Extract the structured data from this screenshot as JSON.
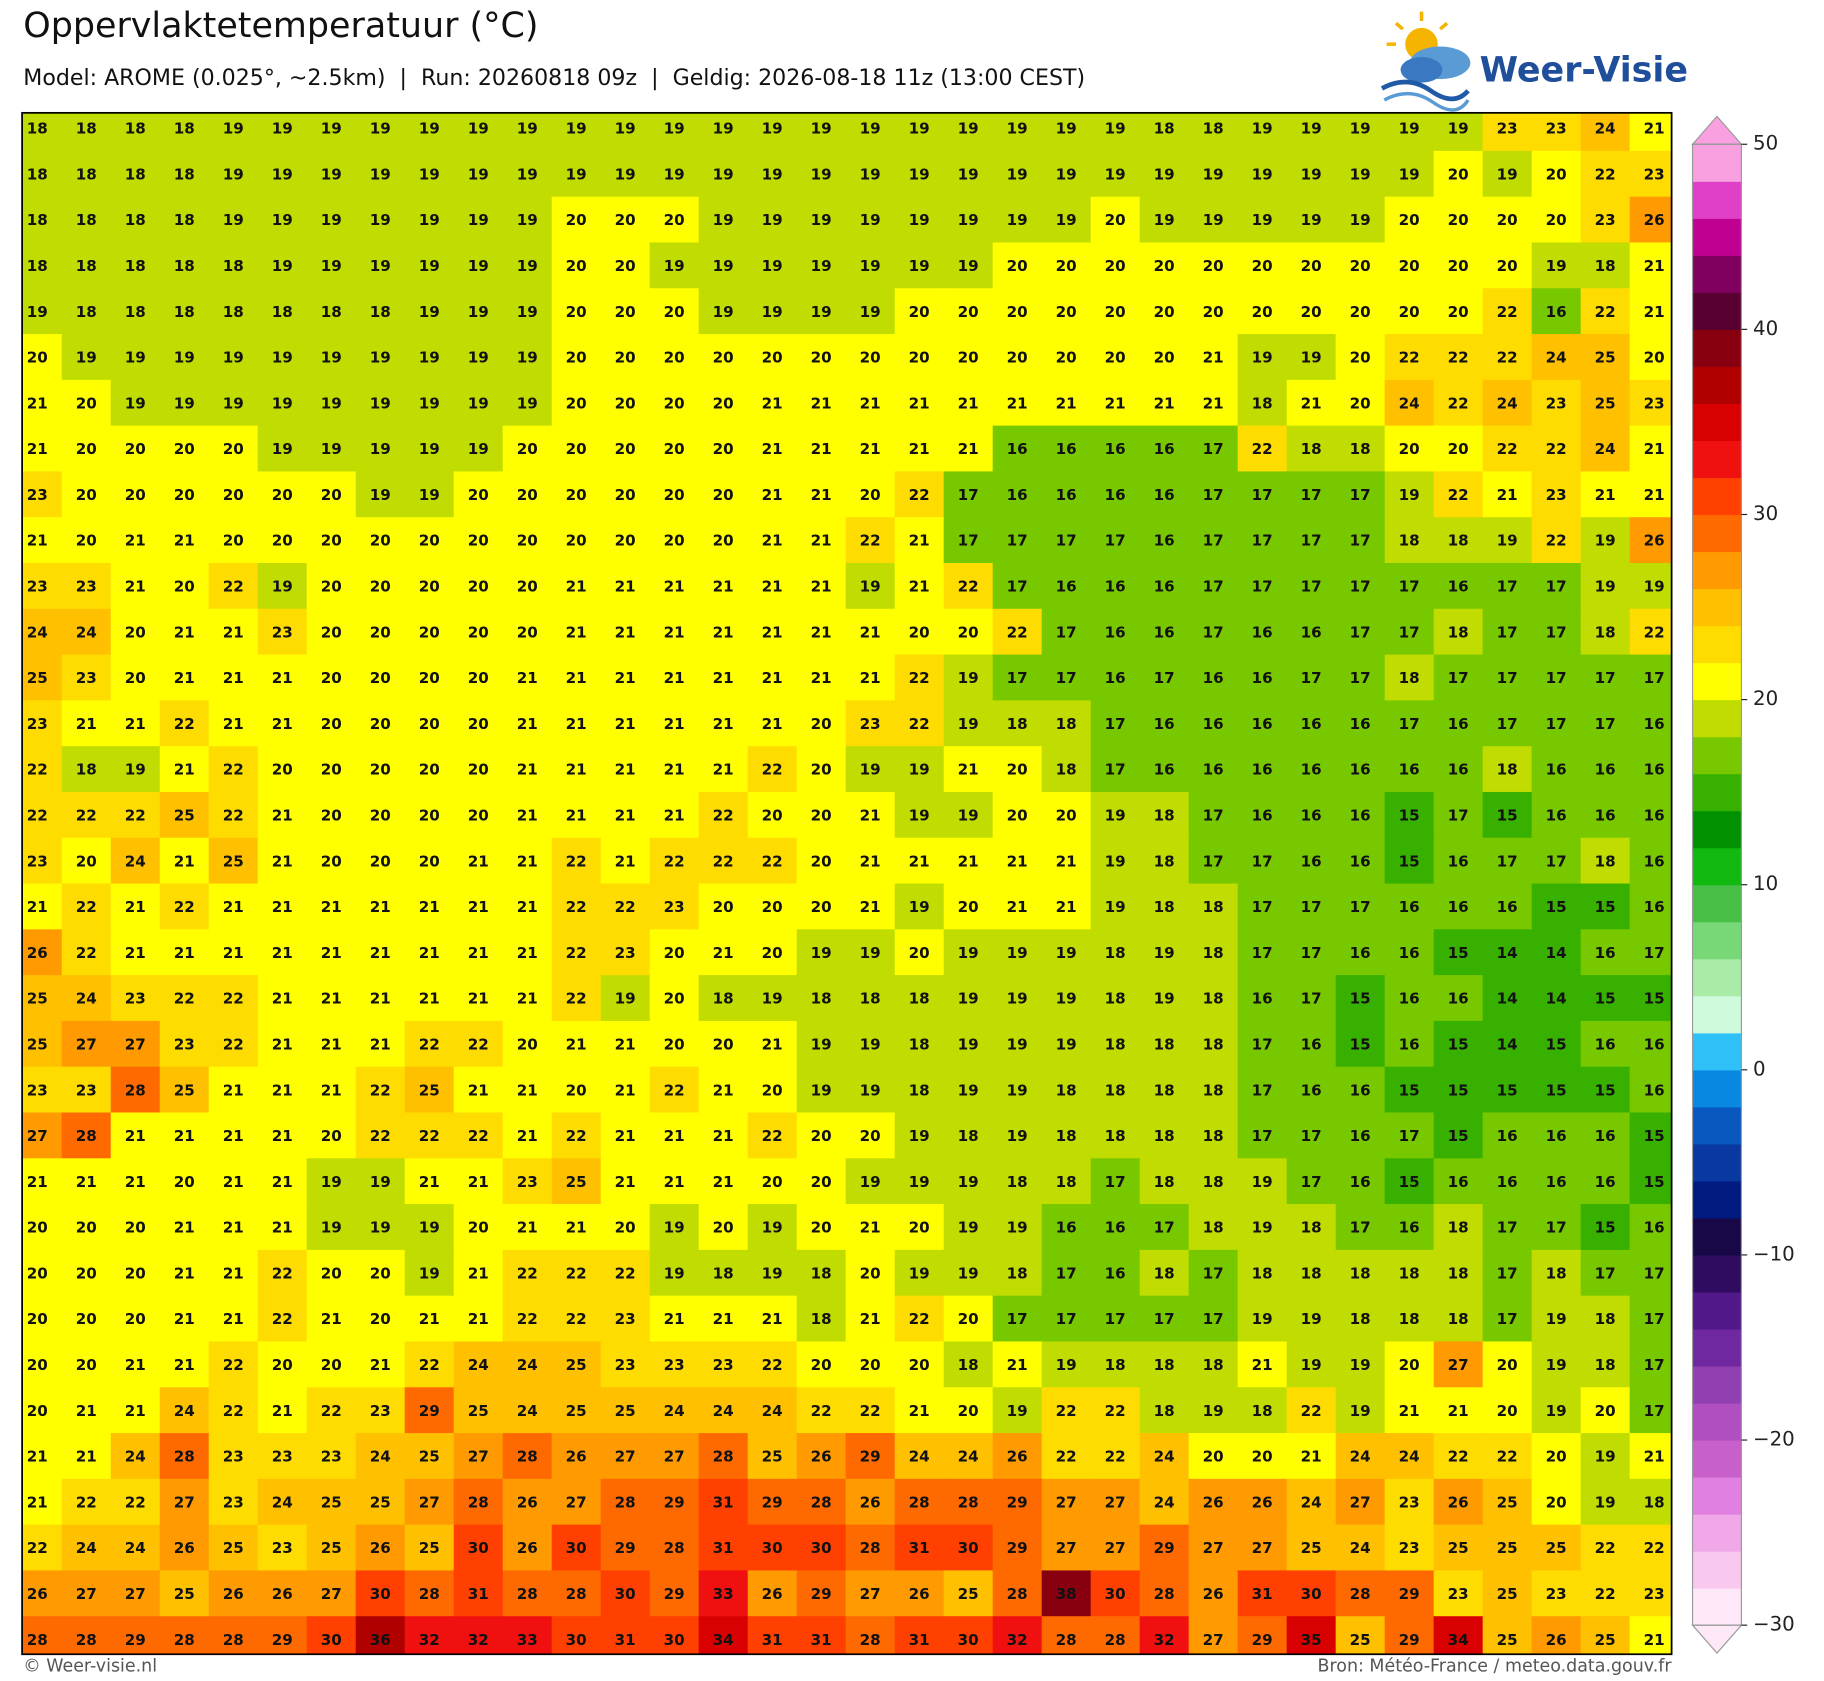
{
  "chart_data": {
    "type": "heatmap",
    "title": "Oppervlaktetemperatuur (°C)",
    "subtitle": "Model: AROME (0.025°, ~2.5km)  |  Run: 20260818 09z  |  Geldig: 2026-08-18 11z (13:00 CEST)",
    "brand": "Weer-Visie",
    "footer_left": "© Weer-visie.nl",
    "footer_right": "Bron: Météo-France / meteo.data.gouv.fr",
    "values": [
      [
        18,
        18,
        18,
        18,
        19,
        19,
        19,
        19,
        19,
        19,
        19,
        19,
        19,
        19,
        19,
        19,
        19,
        19,
        19,
        19,
        19,
        19,
        19,
        18,
        18,
        19,
        19,
        19,
        19,
        19,
        23,
        23,
        24,
        21
      ],
      [
        18,
        18,
        18,
        18,
        19,
        19,
        19,
        19,
        19,
        19,
        19,
        19,
        19,
        19,
        19,
        19,
        19,
        19,
        19,
        19,
        19,
        19,
        19,
        19,
        19,
        19,
        19,
        19,
        19,
        20,
        19,
        20,
        22,
        23
      ],
      [
        18,
        18,
        18,
        18,
        19,
        19,
        19,
        19,
        19,
        19,
        19,
        20,
        20,
        20,
        19,
        19,
        19,
        19,
        19,
        19,
        19,
        19,
        20,
        19,
        19,
        19,
        19,
        19,
        20,
        20,
        20,
        20,
        23,
        26
      ],
      [
        18,
        18,
        18,
        18,
        18,
        19,
        19,
        19,
        19,
        19,
        19,
        20,
        20,
        19,
        19,
        19,
        19,
        19,
        19,
        19,
        20,
        20,
        20,
        20,
        20,
        20,
        20,
        20,
        20,
        20,
        20,
        19,
        18,
        21
      ],
      [
        19,
        18,
        18,
        18,
        18,
        18,
        18,
        18,
        19,
        19,
        19,
        20,
        20,
        20,
        19,
        19,
        19,
        19,
        20,
        20,
        20,
        20,
        20,
        20,
        20,
        20,
        20,
        20,
        20,
        20,
        22,
        16,
        22,
        21
      ],
      [
        20,
        19,
        19,
        19,
        19,
        19,
        19,
        19,
        19,
        19,
        19,
        20,
        20,
        20,
        20,
        20,
        20,
        20,
        20,
        20,
        20,
        20,
        20,
        20,
        21,
        19,
        19,
        20,
        22,
        22,
        22,
        24,
        25,
        20
      ],
      [
        21,
        20,
        19,
        19,
        19,
        19,
        19,
        19,
        19,
        19,
        19,
        20,
        20,
        20,
        20,
        21,
        21,
        21,
        21,
        21,
        21,
        21,
        21,
        21,
        21,
        18,
        21,
        20,
        24,
        22,
        24,
        23,
        25,
        23
      ],
      [
        21,
        20,
        20,
        20,
        20,
        19,
        19,
        19,
        19,
        19,
        20,
        20,
        20,
        20,
        20,
        21,
        21,
        21,
        21,
        21,
        16,
        16,
        16,
        16,
        17,
        22,
        18,
        18,
        20,
        20,
        22,
        22,
        24,
        21
      ],
      [
        23,
        20,
        20,
        20,
        20,
        20,
        20,
        19,
        19,
        20,
        20,
        20,
        20,
        20,
        20,
        21,
        21,
        20,
        22,
        17,
        16,
        16,
        16,
        16,
        17,
        17,
        17,
        17,
        19,
        22,
        21,
        23,
        21,
        21
      ],
      [
        21,
        20,
        21,
        21,
        20,
        20,
        20,
        20,
        20,
        20,
        20,
        20,
        20,
        20,
        20,
        21,
        21,
        22,
        21,
        17,
        17,
        17,
        17,
        16,
        17,
        17,
        17,
        17,
        18,
        18,
        19,
        22,
        19,
        26
      ],
      [
        23,
        23,
        21,
        20,
        22,
        19,
        20,
        20,
        20,
        20,
        20,
        21,
        21,
        21,
        21,
        21,
        21,
        19,
        21,
        22,
        17,
        16,
        16,
        16,
        17,
        17,
        17,
        17,
        17,
        16,
        17,
        17,
        19,
        19
      ],
      [
        24,
        24,
        20,
        21,
        21,
        23,
        20,
        20,
        20,
        20,
        20,
        21,
        21,
        21,
        21,
        21,
        21,
        21,
        20,
        20,
        22,
        17,
        16,
        16,
        17,
        16,
        16,
        17,
        17,
        18,
        17,
        17,
        18,
        22
      ],
      [
        25,
        23,
        20,
        21,
        21,
        21,
        20,
        20,
        20,
        20,
        21,
        21,
        21,
        21,
        21,
        21,
        21,
        21,
        22,
        19,
        17,
        17,
        16,
        17,
        16,
        16,
        17,
        17,
        18,
        17,
        17,
        17,
        17,
        17
      ],
      [
        23,
        21,
        21,
        22,
        21,
        21,
        20,
        20,
        20,
        20,
        21,
        21,
        21,
        21,
        21,
        21,
        20,
        23,
        22,
        19,
        18,
        18,
        17,
        16,
        16,
        16,
        16,
        16,
        17,
        16,
        17,
        17,
        17,
        16
      ],
      [
        22,
        18,
        19,
        21,
        22,
        20,
        20,
        20,
        20,
        20,
        21,
        21,
        21,
        21,
        21,
        22,
        20,
        19,
        19,
        21,
        20,
        18,
        17,
        16,
        16,
        16,
        16,
        16,
        16,
        16,
        18,
        16,
        16,
        16
      ],
      [
        22,
        22,
        22,
        25,
        22,
        21,
        20,
        20,
        20,
        20,
        21,
        21,
        21,
        21,
        22,
        20,
        20,
        21,
        19,
        19,
        20,
        20,
        19,
        18,
        17,
        16,
        16,
        16,
        15,
        17,
        15,
        16,
        16,
        16
      ],
      [
        23,
        20,
        24,
        21,
        25,
        21,
        20,
        20,
        20,
        21,
        21,
        22,
        21,
        22,
        22,
        22,
        20,
        21,
        21,
        21,
        21,
        21,
        19,
        18,
        17,
        17,
        16,
        16,
        15,
        16,
        17,
        17,
        18,
        16
      ],
      [
        21,
        22,
        21,
        22,
        21,
        21,
        21,
        21,
        21,
        21,
        21,
        22,
        22,
        23,
        20,
        20,
        20,
        21,
        19,
        20,
        21,
        21,
        19,
        18,
        18,
        17,
        17,
        17,
        16,
        16,
        16,
        15,
        15,
        16
      ],
      [
        26,
        22,
        21,
        21,
        21,
        21,
        21,
        21,
        21,
        21,
        21,
        22,
        23,
        20,
        21,
        20,
        19,
        19,
        20,
        19,
        19,
        19,
        18,
        19,
        18,
        17,
        17,
        16,
        16,
        15,
        14,
        14,
        16,
        17
      ],
      [
        25,
        24,
        23,
        22,
        22,
        21,
        21,
        21,
        21,
        21,
        21,
        22,
        19,
        20,
        18,
        19,
        18,
        18,
        18,
        19,
        19,
        19,
        18,
        19,
        18,
        16,
        17,
        15,
        16,
        16,
        14,
        14,
        15,
        15
      ],
      [
        25,
        27,
        27,
        23,
        22,
        21,
        21,
        21,
        22,
        22,
        20,
        21,
        21,
        20,
        20,
        21,
        19,
        19,
        18,
        19,
        19,
        19,
        18,
        18,
        18,
        17,
        16,
        15,
        16,
        15,
        14,
        15,
        16,
        16
      ],
      [
        23,
        23,
        28,
        25,
        21,
        21,
        21,
        22,
        25,
        21,
        21,
        20,
        21,
        22,
        21,
        20,
        19,
        19,
        18,
        19,
        19,
        18,
        18,
        18,
        18,
        17,
        16,
        16,
        15,
        15,
        15,
        15,
        15,
        16
      ],
      [
        27,
        28,
        21,
        21,
        21,
        21,
        20,
        22,
        22,
        22,
        21,
        22,
        21,
        21,
        21,
        22,
        20,
        20,
        19,
        18,
        19,
        18,
        18,
        18,
        18,
        17,
        17,
        16,
        17,
        15,
        16,
        16,
        16,
        15
      ],
      [
        21,
        21,
        21,
        20,
        21,
        21,
        19,
        19,
        21,
        21,
        23,
        25,
        21,
        21,
        21,
        20,
        20,
        19,
        19,
        19,
        18,
        18,
        17,
        18,
        18,
        19,
        17,
        16,
        15,
        16,
        16,
        16,
        16,
        15
      ],
      [
        20,
        20,
        20,
        21,
        21,
        21,
        19,
        19,
        19,
        20,
        21,
        21,
        20,
        19,
        20,
        19,
        20,
        21,
        20,
        19,
        19,
        16,
        16,
        17,
        18,
        19,
        18,
        17,
        16,
        18,
        17,
        17,
        15,
        16
      ],
      [
        20,
        20,
        20,
        21,
        21,
        22,
        20,
        20,
        19,
        21,
        22,
        22,
        22,
        19,
        18,
        19,
        18,
        20,
        19,
        19,
        18,
        17,
        16,
        18,
        17,
        18,
        18,
        18,
        18,
        18,
        17,
        18,
        17,
        17
      ],
      [
        20,
        20,
        20,
        21,
        21,
        22,
        21,
        20,
        21,
        21,
        22,
        22,
        23,
        21,
        21,
        21,
        18,
        21,
        22,
        20,
        17,
        17,
        17,
        17,
        17,
        19,
        19,
        18,
        18,
        18,
        17,
        19,
        18,
        17
      ],
      [
        20,
        20,
        21,
        21,
        22,
        20,
        20,
        21,
        22,
        24,
        24,
        25,
        23,
        23,
        23,
        22,
        20,
        20,
        20,
        18,
        21,
        19,
        18,
        18,
        18,
        21,
        19,
        19,
        20,
        27,
        20,
        19,
        18,
        17
      ],
      [
        20,
        21,
        21,
        24,
        22,
        21,
        22,
        23,
        29,
        25,
        24,
        25,
        25,
        24,
        24,
        24,
        22,
        22,
        21,
        20,
        19,
        22,
        22,
        18,
        19,
        18,
        22,
        19,
        21,
        21,
        20,
        19,
        20,
        17
      ],
      [
        21,
        21,
        24,
        28,
        23,
        23,
        23,
        24,
        25,
        27,
        28,
        26,
        27,
        27,
        28,
        25,
        26,
        29,
        24,
        24,
        26,
        22,
        22,
        24,
        20,
        20,
        21,
        24,
        24,
        22,
        22,
        20,
        19,
        21
      ],
      [
        21,
        22,
        22,
        27,
        23,
        24,
        25,
        25,
        27,
        28,
        26,
        27,
        28,
        29,
        31,
        29,
        28,
        26,
        28,
        28,
        29,
        27,
        27,
        24,
        26,
        26,
        24,
        27,
        23,
        26,
        25,
        20,
        19,
        18
      ],
      [
        22,
        24,
        24,
        26,
        25,
        23,
        25,
        26,
        25,
        30,
        26,
        30,
        29,
        28,
        31,
        30,
        30,
        28,
        31,
        30,
        29,
        27,
        27,
        29,
        27,
        27,
        25,
        24,
        23,
        25,
        25,
        25,
        22,
        22
      ],
      [
        26,
        27,
        27,
        25,
        26,
        26,
        27,
        30,
        28,
        31,
        28,
        28,
        30,
        29,
        33,
        26,
        29,
        27,
        26,
        25,
        28,
        38,
        30,
        28,
        26,
        31,
        30,
        28,
        29,
        23,
        25,
        23,
        22,
        23
      ],
      [
        28,
        28,
        29,
        28,
        28,
        29,
        30,
        36,
        32,
        32,
        33,
        30,
        31,
        30,
        34,
        31,
        31,
        28,
        31,
        30,
        32,
        28,
        28,
        32,
        27,
        29,
        35,
        25,
        29,
        34,
        25,
        26,
        25,
        21
      ]
    ],
    "colorbar": {
      "ylim": [
        -30,
        50
      ],
      "yticks": [
        {
          "value": -30,
          "label": "−30"
        },
        {
          "value": -20,
          "label": "−20"
        },
        {
          "value": -10,
          "label": "−10"
        },
        0,
        10,
        20,
        30,
        40,
        50
      ],
      "colors": [
        "#fde8f8",
        "#f8c8f0",
        "#f0a8e8",
        "#e080e0",
        "#c860cc",
        "#b050c0",
        "#9040b0",
        "#7028a0",
        "#501888",
        "#300c60",
        "#180848",
        "#001a80",
        "#0838a0",
        "#0858c0",
        "#0888e0",
        "#30c0f8",
        "#d0fadc",
        "#a8eca8",
        "#78d878",
        "#48c048",
        "#10b810",
        "#009000",
        "#38b000",
        "#78c800",
        "#c0dc00",
        "#ffff00",
        "#ffdc00",
        "#ffc000",
        "#ff9a00",
        "#ff6a00",
        "#ff4000",
        "#f01010",
        "#d80000",
        "#b00000",
        "#880010",
        "#580030",
        "#800060",
        "#c00090",
        "#e040c8",
        "#f8a0e0"
      ]
    }
  }
}
